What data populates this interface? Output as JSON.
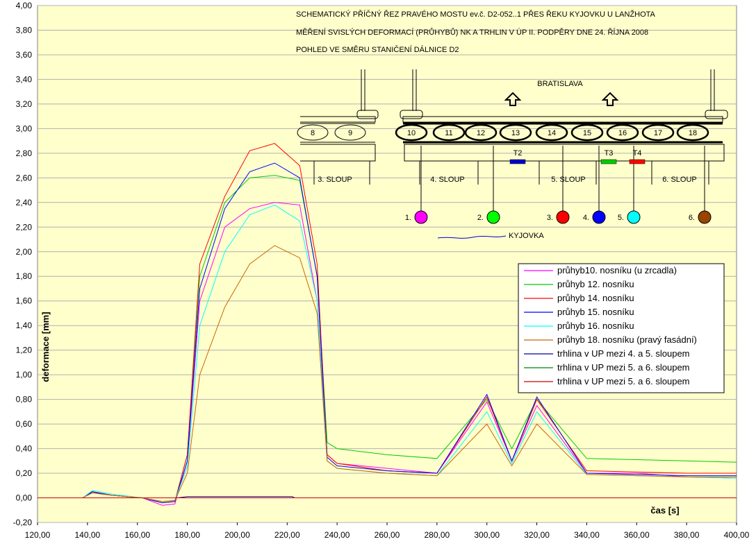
{
  "chart_data": {
    "type": "line",
    "xlabel": "čas [s]",
    "ylabel": "deformace [mm]",
    "xlim": [
      120,
      400
    ],
    "ylim": [
      -0.2,
      4.0
    ],
    "xticks": [
      "120,00",
      "140,00",
      "160,00",
      "180,00",
      "200,00",
      "220,00",
      "240,00",
      "260,00",
      "280,00",
      "300,00",
      "320,00",
      "340,00",
      "360,00",
      "380,00",
      "400,00"
    ],
    "yticks": [
      "-0,20",
      "0,00",
      "0,20",
      "0,40",
      "0,60",
      "0,80",
      "1,00",
      "1,20",
      "1,40",
      "1,60",
      "1,80",
      "2,00",
      "2,20",
      "2,40",
      "2,60",
      "2,80",
      "3,00",
      "3,20",
      "3,40",
      "3,60",
      "3,80",
      "4,00"
    ],
    "plot_background": "#ffffcc",
    "grid": "horizontal",
    "legend_position": "right",
    "series": [
      {
        "name": "průhyb10. nosníku (u zrcadla)",
        "color": "#ff00ff",
        "x": [
          120,
          138,
          142,
          150,
          162,
          170,
          175,
          180,
          185,
          195,
          205,
          215,
          225,
          232,
          236,
          240,
          260,
          280,
          300,
          310,
          320,
          340,
          360,
          380,
          400
        ],
        "y": [
          0,
          0,
          0.05,
          0.02,
          0,
          -0.06,
          -0.05,
          0.3,
          1.6,
          2.2,
          2.35,
          2.4,
          2.38,
          1.6,
          0.35,
          0.28,
          0.24,
          0.2,
          0.78,
          0.3,
          0.75,
          0.2,
          0.2,
          0.17,
          0.16
        ]
      },
      {
        "name": "průhyb 12. nosníku",
        "color": "#00cc00",
        "x": [
          120,
          138,
          142,
          150,
          162,
          170,
          175,
          180,
          185,
          195,
          205,
          215,
          225,
          232,
          236,
          240,
          260,
          280,
          300,
          310,
          320,
          340,
          360,
          380,
          400
        ],
        "y": [
          0,
          0,
          0.04,
          0.02,
          0,
          -0.04,
          -0.03,
          0.35,
          1.8,
          2.4,
          2.6,
          2.62,
          2.58,
          1.8,
          0.45,
          0.4,
          0.35,
          0.32,
          0.8,
          0.4,
          0.8,
          0.32,
          0.31,
          0.3,
          0.29
        ]
      },
      {
        "name": "průhyb 14. nosníku",
        "color": "#ff0000",
        "x": [
          120,
          138,
          142,
          150,
          162,
          170,
          175,
          180,
          185,
          195,
          205,
          215,
          225,
          232,
          236,
          240,
          260,
          280,
          300,
          310,
          320,
          340,
          360,
          380,
          400
        ],
        "y": [
          0,
          0,
          0.05,
          0.02,
          0,
          -0.04,
          -0.03,
          0.35,
          1.9,
          2.45,
          2.82,
          2.88,
          2.7,
          1.9,
          0.35,
          0.28,
          0.22,
          0.2,
          0.82,
          0.3,
          0.8,
          0.22,
          0.21,
          0.2,
          0.2
        ]
      },
      {
        "name": "průhyb 15. nosníku",
        "color": "#0000ff",
        "x": [
          120,
          138,
          142,
          150,
          162,
          170,
          175,
          180,
          185,
          195,
          205,
          215,
          225,
          232,
          236,
          240,
          260,
          280,
          300,
          310,
          320,
          340,
          360,
          380,
          400
        ],
        "y": [
          0,
          0,
          0.05,
          0.02,
          0,
          -0.04,
          -0.03,
          0.3,
          1.7,
          2.35,
          2.65,
          2.72,
          2.6,
          1.8,
          0.33,
          0.26,
          0.22,
          0.2,
          0.84,
          0.3,
          0.82,
          0.2,
          0.19,
          0.18,
          0.18
        ]
      },
      {
        "name": "průhyb 16. nosníku",
        "color": "#00ffff",
        "x": [
          120,
          138,
          142,
          150,
          162,
          170,
          175,
          180,
          185,
          195,
          205,
          215,
          225,
          232,
          236,
          240,
          260,
          280,
          300,
          310,
          320,
          340,
          360,
          380,
          400
        ],
        "y": [
          0,
          0,
          0.06,
          0.03,
          0,
          -0.03,
          -0.02,
          0.25,
          1.4,
          2.0,
          2.3,
          2.38,
          2.25,
          1.6,
          0.3,
          0.24,
          0.2,
          0.18,
          0.7,
          0.28,
          0.7,
          0.19,
          0.18,
          0.17,
          0.16
        ]
      },
      {
        "name": "průhyb 18. nosníku (pravý fasádní)",
        "color": "#cc6600",
        "x": [
          120,
          138,
          142,
          150,
          162,
          170,
          175,
          180,
          185,
          195,
          205,
          215,
          225,
          232,
          236,
          240,
          260,
          280,
          300,
          310,
          320,
          340,
          360,
          380,
          400
        ],
        "y": [
          0,
          0,
          0.04,
          0.02,
          0,
          -0.03,
          -0.02,
          0.2,
          1.0,
          1.55,
          1.9,
          2.05,
          1.95,
          1.5,
          0.3,
          0.24,
          0.2,
          0.18,
          0.6,
          0.26,
          0.6,
          0.19,
          0.18,
          0.17,
          0.17
        ]
      },
      {
        "name": "trhlina v UP mezi 4. a 5. sloupem",
        "color": "#000099",
        "x": [
          120,
          176,
          180,
          222,
          223
        ],
        "y": [
          0,
          0,
          0.01,
          0.01,
          0.0
        ]
      },
      {
        "name": "trhlina v UP mezi 5. a 6. sloupem",
        "color": "#008000",
        "x": [
          120,
          400
        ],
        "y": [
          0,
          0
        ]
      },
      {
        "name": "trhlina v UP mezi 5. a 6. sloupem",
        "color": "#cc0000",
        "x": [
          120,
          400
        ],
        "y": [
          0,
          0
        ]
      }
    ]
  },
  "header": {
    "line1": "SCHEMATICKÝ PŘÍČNÝ ŘEZ PRAVÉHO MOSTU ev.č. D2-052..1 PŘES ŘEKU KYJOVKU U LANŽHOTA",
    "line2": "MĚŘENÍ SVISLÝCH DEFORMACÍ (PRŮHYBŮ) NK A TRHLIN V ÚP II. PODPĚRY DNE 24. ŘÍJNA 2008",
    "line3": "POHLED VE SMĚRU STANIČENÍ DÁLNICE D2"
  },
  "diagram": {
    "direction": "BRATISLAVA",
    "river": "KYJOVKA",
    "beams": [
      "8",
      "9",
      "10",
      "11",
      "12",
      "13",
      "14",
      "15",
      "16",
      "17",
      "18"
    ],
    "columns": [
      "3. SLOUP",
      "4. SLOUP",
      "5. SLOUP",
      "6. SLOUP"
    ],
    "cracks": [
      {
        "label": "T2",
        "color": "#0000cc"
      },
      {
        "label": "T3",
        "color": "#00cc00"
      },
      {
        "label": "T4",
        "color": "#ff0000"
      }
    ],
    "sensors": [
      {
        "label": "1.",
        "color": "#ff00ff"
      },
      {
        "label": "2.",
        "color": "#00ff00"
      },
      {
        "label": "3.",
        "color": "#ff0000"
      },
      {
        "label": "4.",
        "color": "#0000ff"
      },
      {
        "label": "5.",
        "color": "#00ffff"
      },
      {
        "label": "6.",
        "color": "#994400"
      }
    ]
  }
}
